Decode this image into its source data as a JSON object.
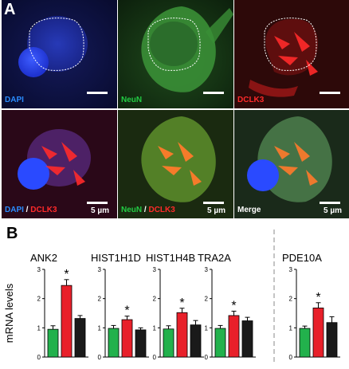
{
  "panel_a": {
    "letter": "A",
    "images": [
      {
        "label_parts": [
          {
            "text": "DAPI",
            "color": "#2a8cff"
          }
        ],
        "scale_text": ""
      },
      {
        "label_parts": [
          {
            "text": "NeuN",
            "color": "#22cc44"
          }
        ],
        "scale_text": ""
      },
      {
        "label_parts": [
          {
            "text": "DCLK3",
            "color": "#ff2a2a"
          }
        ],
        "scale_text": ""
      },
      {
        "label_parts": [
          {
            "text": "DAPI",
            "color": "#2a8cff"
          },
          {
            "text": " / ",
            "color": "#ffffff"
          },
          {
            "text": "DCLK3",
            "color": "#ff2a2a"
          }
        ],
        "scale_text": "5 µm"
      },
      {
        "label_parts": [
          {
            "text": "NeuN",
            "color": "#22cc44"
          },
          {
            "text": " / ",
            "color": "#ffffff"
          },
          {
            "text": "DCLK3",
            "color": "#ff2a2a"
          }
        ],
        "scale_text": "5 µm"
      },
      {
        "label_parts": [
          {
            "text": "Merge",
            "color": "#ffffff"
          }
        ],
        "scale_text": "5 µm"
      }
    ]
  },
  "panel_b": {
    "letter": "B",
    "colors": {
      "green": "#22b14c",
      "red": "#e8202a",
      "black": "#1a1a1a"
    },
    "chart_data": {
      "type": "bar",
      "ylabel": "mRNA levels",
      "ylim": [
        0,
        3
      ],
      "yticks": [
        "0",
        "1",
        "2",
        "3"
      ],
      "genes": [
        {
          "name": "ANK2",
          "values": [
            0.95,
            2.45,
            1.32
          ],
          "errors": [
            0.12,
            0.2,
            0.1
          ],
          "significant": [
            false,
            true,
            false
          ]
        },
        {
          "name": "HIST1H1D",
          "values": [
            0.98,
            1.28,
            0.93
          ],
          "errors": [
            0.1,
            0.12,
            0.07
          ],
          "significant": [
            false,
            true,
            false
          ]
        },
        {
          "name": "HIST1H4B",
          "values": [
            0.96,
            1.52,
            1.1
          ],
          "errors": [
            0.11,
            0.15,
            0.15
          ],
          "significant": [
            false,
            true,
            false
          ]
        },
        {
          "name": "TRA2A",
          "values": [
            0.98,
            1.42,
            1.24
          ],
          "errors": [
            0.1,
            0.15,
            0.12
          ],
          "significant": [
            false,
            true,
            false
          ]
        },
        {
          "name": "PDE10A",
          "values": [
            0.98,
            1.68,
            1.18
          ],
          "errors": [
            0.08,
            0.18,
            0.2
          ],
          "significant": [
            false,
            true,
            false
          ]
        }
      ],
      "significance_marker": "*"
    }
  }
}
